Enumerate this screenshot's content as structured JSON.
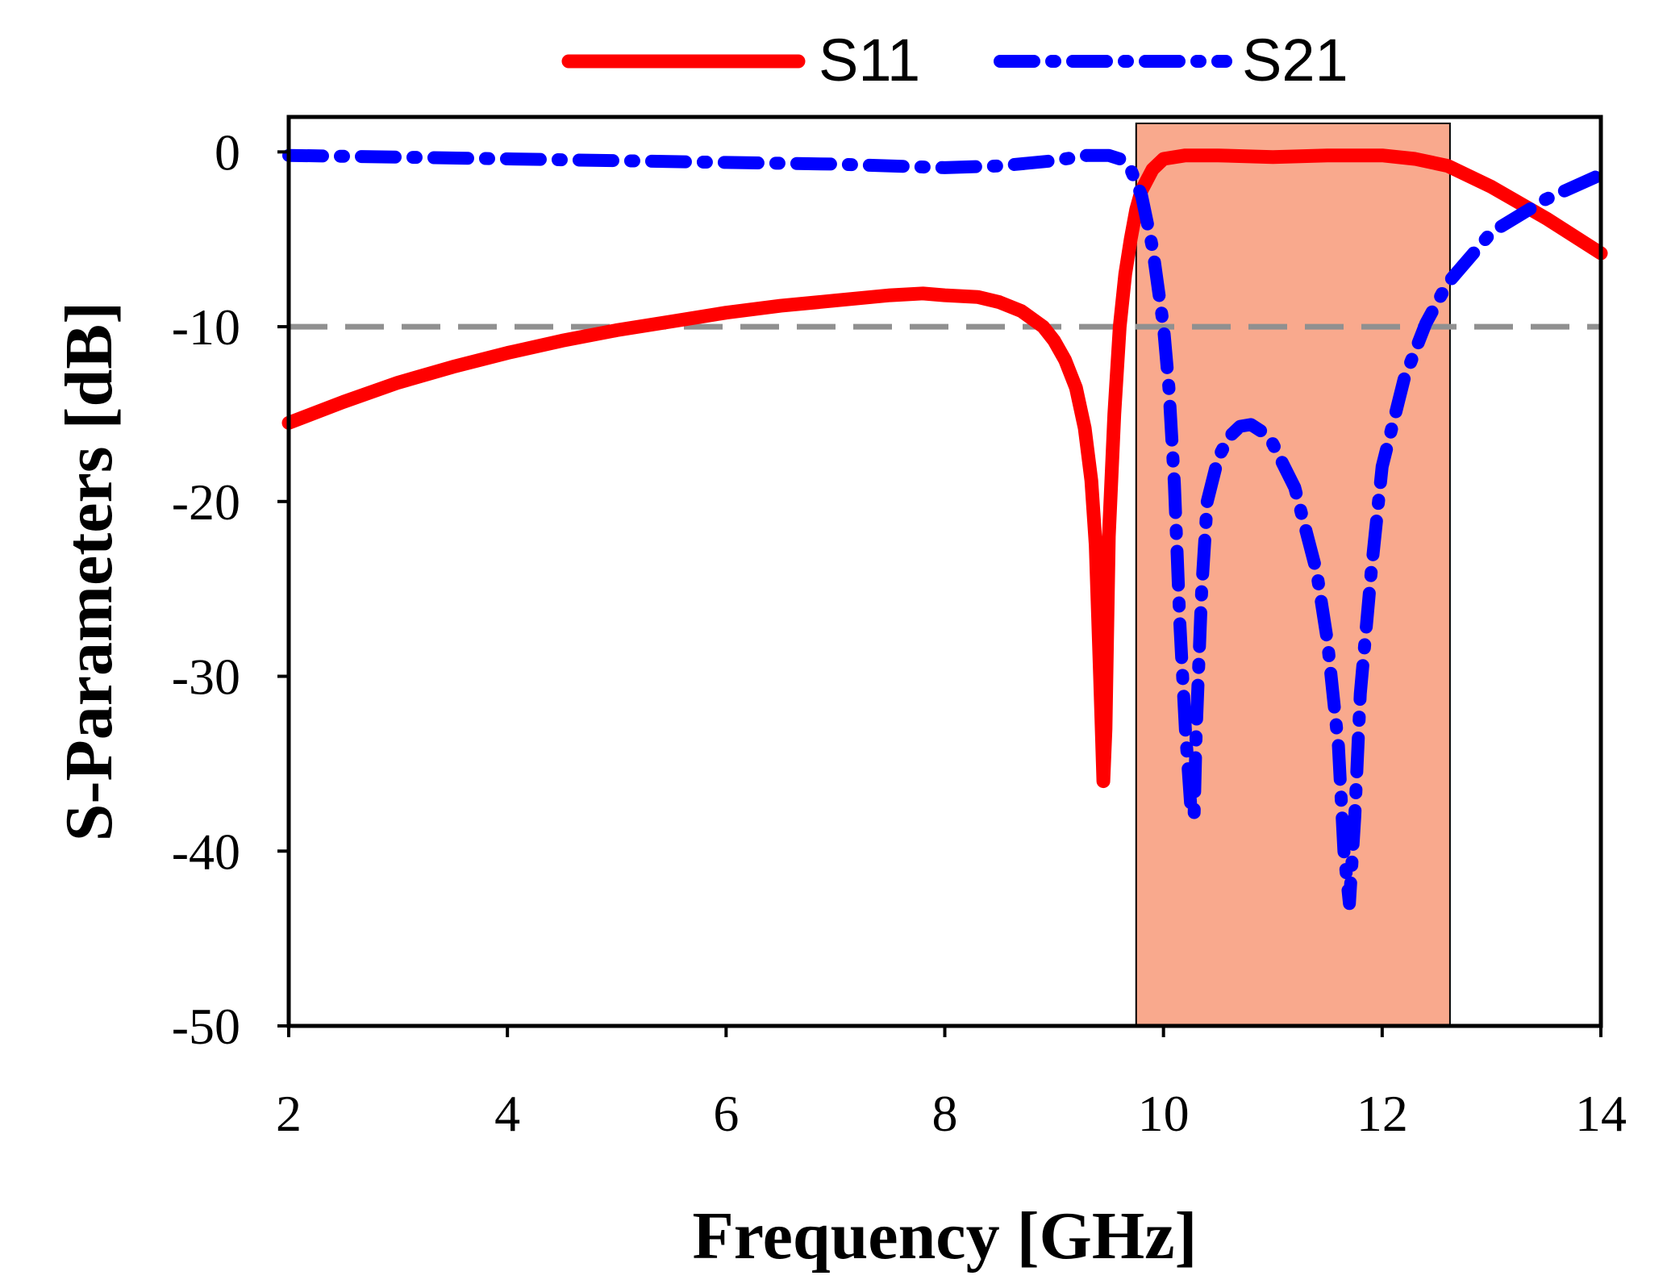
{
  "chart_data": {
    "type": "line",
    "xlabel": "Frequency [GHz]",
    "ylabel": "S-Parameters [dB]",
    "xlim": [
      2,
      14
    ],
    "ylim": [
      -50,
      2
    ],
    "xticks": [
      2,
      4,
      6,
      8,
      10,
      12,
      14
    ],
    "yticks": [
      0,
      -10,
      -20,
      -30,
      -40,
      -50
    ],
    "xtick_labels": [
      "2",
      "4",
      "6",
      "8",
      "10",
      "12",
      "14"
    ],
    "ytick_labels": [
      "0",
      "-10",
      "-20",
      "-30",
      "-40",
      "-50"
    ],
    "grid": false,
    "legend_position": "top-center",
    "reference_line": {
      "y": -10,
      "style": "dashed",
      "color": "#909090"
    },
    "highlight_band": {
      "x_start": 9.75,
      "x_end": 12.62,
      "color": "#f9a98d"
    },
    "series": [
      {
        "name": "S11",
        "legend_label": "S11",
        "color": "#ff0000",
        "style": "solid",
        "x": [
          2.0,
          2.5,
          3.0,
          3.5,
          4.0,
          4.5,
          5.0,
          5.5,
          6.0,
          6.5,
          7.0,
          7.5,
          7.8,
          8.0,
          8.3,
          8.5,
          8.7,
          8.9,
          9.0,
          9.1,
          9.2,
          9.28,
          9.34,
          9.38,
          9.42,
          9.45,
          9.47,
          9.5,
          9.55,
          9.6,
          9.65,
          9.7,
          9.75,
          9.8,
          9.9,
          10.0,
          10.2,
          10.5,
          11.0,
          11.5,
          12.0,
          12.3,
          12.6,
          13.0,
          13.5,
          14.0
        ],
        "y": [
          -15.5,
          -14.3,
          -13.2,
          -12.3,
          -11.5,
          -10.8,
          -10.2,
          -9.7,
          -9.2,
          -8.8,
          -8.5,
          -8.2,
          -8.1,
          -8.2,
          -8.3,
          -8.6,
          -9.1,
          -10.0,
          -10.8,
          -11.9,
          -13.5,
          -15.8,
          -18.8,
          -22.5,
          -30.0,
          -36.0,
          -33.0,
          -22.0,
          -15.0,
          -10.0,
          -7.0,
          -5.0,
          -3.3,
          -2.2,
          -1.0,
          -0.4,
          -0.2,
          -0.2,
          -0.3,
          -0.2,
          -0.2,
          -0.4,
          -0.8,
          -2.0,
          -3.8,
          -5.8
        ]
      },
      {
        "name": "S21",
        "legend_label": "S21",
        "color": "#0000ff",
        "style": "dashdot",
        "x": [
          2.0,
          3.0,
          4.0,
          5.0,
          6.0,
          7.0,
          8.0,
          8.5,
          9.0,
          9.3,
          9.5,
          9.6,
          9.7,
          9.8,
          9.9,
          10.0,
          10.05,
          10.1,
          10.15,
          10.2,
          10.25,
          10.28,
          10.3,
          10.35,
          10.4,
          10.5,
          10.6,
          10.7,
          10.8,
          10.9,
          11.0,
          11.2,
          11.4,
          11.5,
          11.6,
          11.65,
          11.7,
          11.75,
          11.8,
          11.9,
          12.0,
          12.2,
          12.4,
          12.6,
          13.0,
          13.5,
          14.0
        ],
        "y": [
          -0.2,
          -0.3,
          -0.4,
          -0.5,
          -0.6,
          -0.7,
          -0.9,
          -0.8,
          -0.5,
          -0.2,
          -0.2,
          -0.4,
          -1.0,
          -2.5,
          -5.5,
          -10.0,
          -13.5,
          -19.0,
          -27.0,
          -33.0,
          -37.5,
          -38.0,
          -33.0,
          -25.0,
          -20.0,
          -17.5,
          -16.3,
          -15.7,
          -15.6,
          -16.0,
          -16.7,
          -19.2,
          -24.0,
          -28.0,
          -34.0,
          -40.0,
          -43.0,
          -38.0,
          -31.0,
          -24.0,
          -18.0,
          -13.0,
          -9.8,
          -7.5,
          -4.6,
          -2.7,
          -1.3
        ]
      }
    ]
  }
}
